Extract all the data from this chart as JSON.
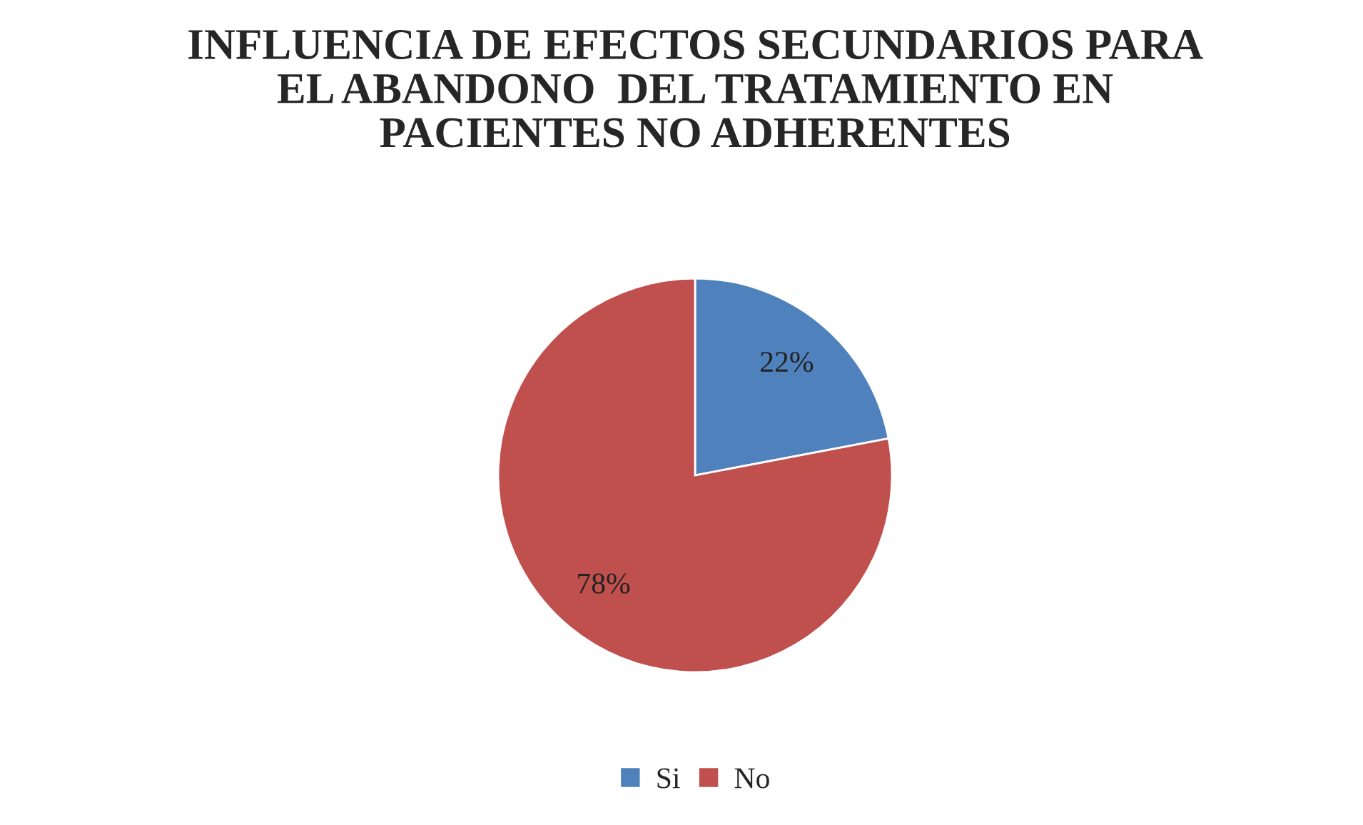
{
  "chart_data": {
    "type": "pie",
    "title": "INFLUENCIA DE EFECTOS SECUNDARIOS PARA\nEL ABANDONO  DEL TRATAMIENTO EN\nPACIENTES NO ADHERENTES",
    "categories": [
      "Si",
      "No"
    ],
    "values": [
      22,
      78
    ],
    "colors": [
      "#4f81bd",
      "#c0504d"
    ],
    "value_labels": [
      "22%",
      "78%"
    ],
    "legend": "bottom"
  }
}
